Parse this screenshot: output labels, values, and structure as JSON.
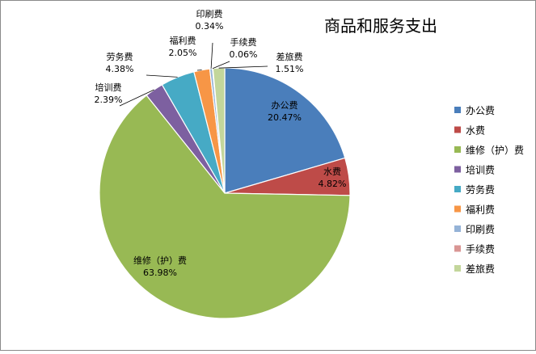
{
  "chart_data": {
    "type": "pie",
    "title": "商品和服务支出",
    "legend_position": "right",
    "start_angle_deg": 0,
    "direction": "clockwise",
    "slices": [
      {
        "label": "办公费",
        "value": 20.47,
        "value_text": "20.47%",
        "color": "#4a7ebb"
      },
      {
        "label": "水费",
        "value": 4.82,
        "value_text": "4.82%",
        "color": "#be4b48"
      },
      {
        "label": "维修（护）费",
        "value": 63.98,
        "value_text": "63.98%",
        "color": "#98b954"
      },
      {
        "label": "培训费",
        "value": 2.39,
        "value_text": "2.39%",
        "color": "#7d60a0"
      },
      {
        "label": "劳务费",
        "value": 4.38,
        "value_text": "4.38%",
        "color": "#46aac5"
      },
      {
        "label": "福利费",
        "value": 2.05,
        "value_text": "2.05%",
        "color": "#f79646"
      },
      {
        "label": "印刷费",
        "value": 0.34,
        "value_text": "0.34%",
        "color": "#95b3d7"
      },
      {
        "label": "手续费",
        "value": 0.06,
        "value_text": "0.06%",
        "color": "#d99694"
      },
      {
        "label": "差旅费",
        "value": 1.51,
        "value_text": "1.51%",
        "color": "#c3d69b"
      }
    ]
  }
}
